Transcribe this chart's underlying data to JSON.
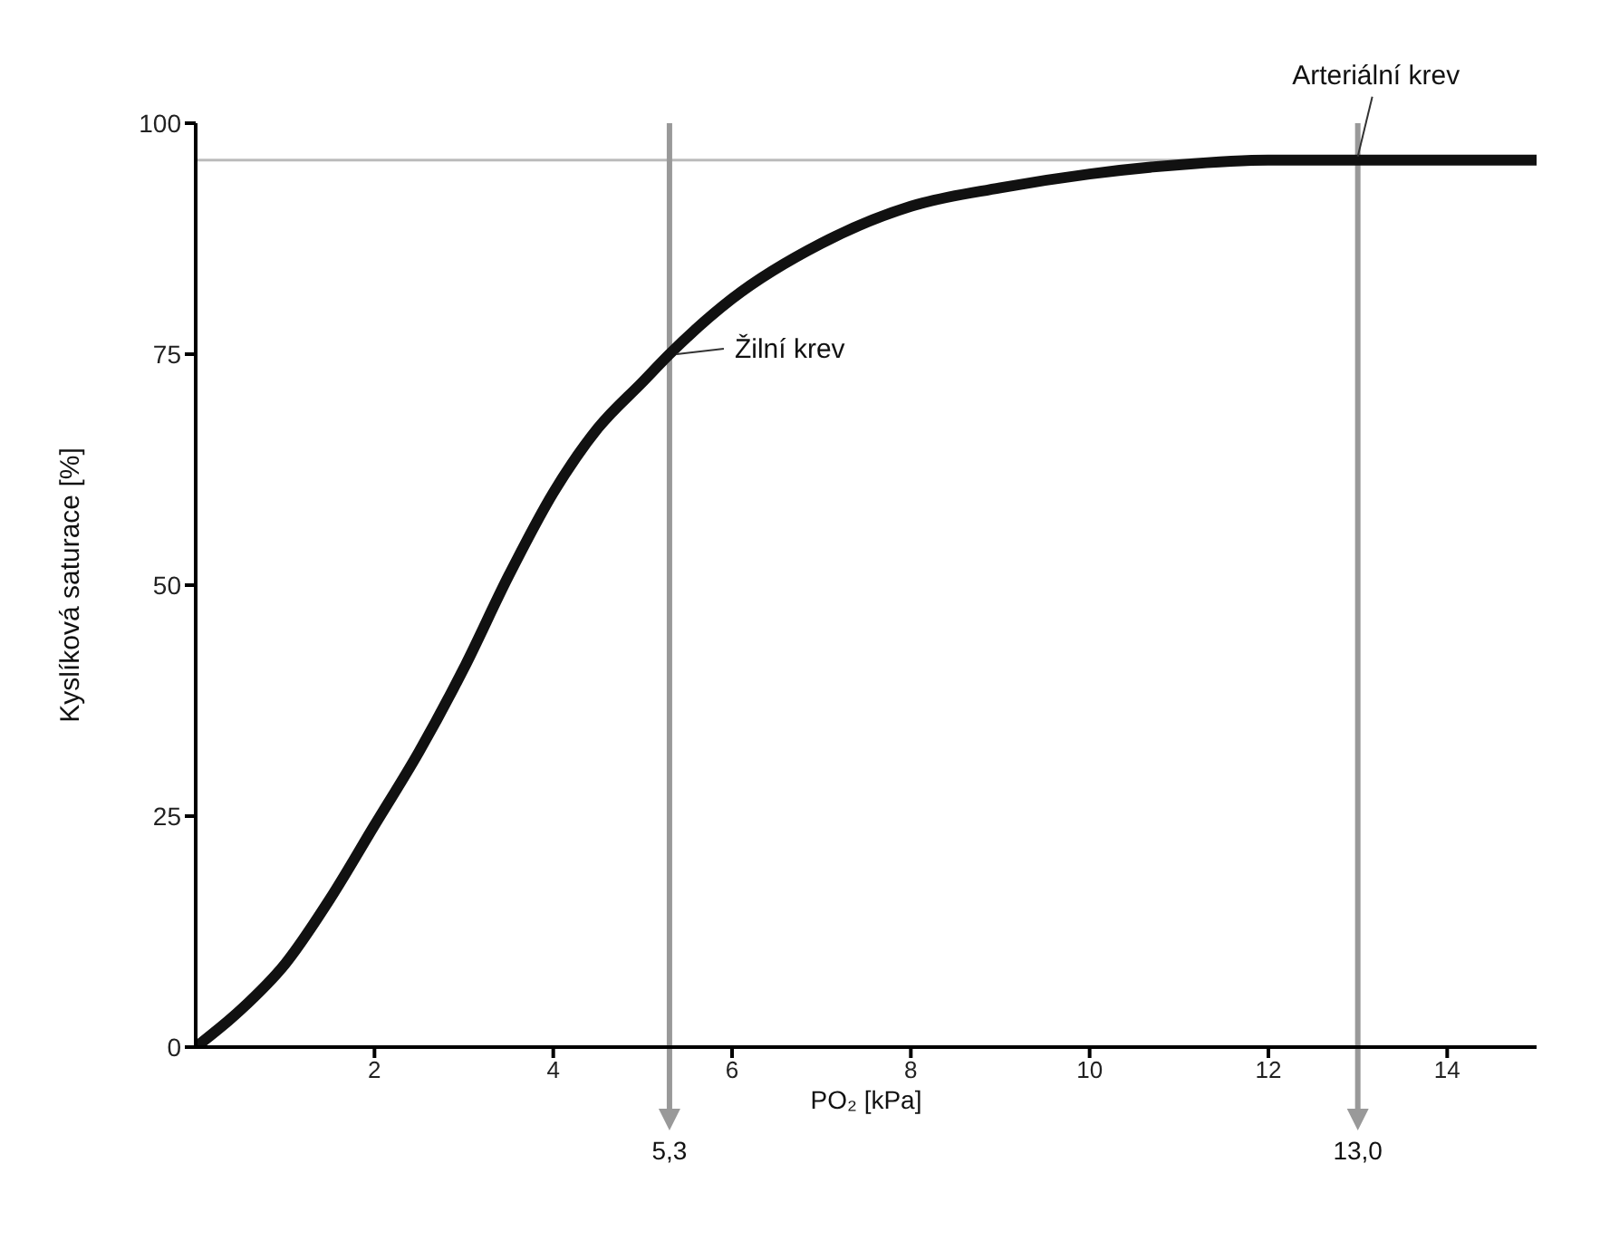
{
  "chart_data": {
    "type": "line",
    "xlabel": "PO₂ [kPa]",
    "ylabel": "Kyslíková saturace [%]",
    "x": [
      0,
      0.5,
      1,
      1.5,
      2,
      2.5,
      3,
      3.5,
      4,
      4.5,
      5,
      5.3,
      6,
      7,
      8,
      9,
      10,
      11,
      12,
      13,
      14,
      15
    ],
    "series": [
      {
        "color": "#111111",
        "values": [
          0,
          4,
          9,
          16,
          24,
          32,
          41,
          51,
          60,
          67,
          72,
          75,
          81,
          87,
          91,
          93,
          94.5,
          95.5,
          96,
          96,
          96,
          96
        ]
      }
    ],
    "xlim": [
      0,
      15
    ],
    "xticks": [
      2,
      4,
      6,
      8,
      10,
      12,
      14
    ],
    "ylim": [
      0,
      100
    ],
    "yticks": [
      0,
      25,
      50,
      75,
      100
    ],
    "grid": false,
    "legend": false,
    "marker": "none",
    "line_style": "solid",
    "ref_lines": [
      {
        "axis": "y",
        "value": 96,
        "color": "#bbbbbb"
      },
      {
        "axis": "x",
        "value": 5.3,
        "label": "5,3",
        "color": "#999999"
      },
      {
        "axis": "x",
        "value": 13,
        "label": "13,0",
        "color": "#999999"
      }
    ],
    "annotations": [
      {
        "text": "Žilní krev",
        "x": 5.3,
        "y": 75
      },
      {
        "text": "Arteriální krev",
        "x": 13,
        "y": 96
      }
    ]
  }
}
